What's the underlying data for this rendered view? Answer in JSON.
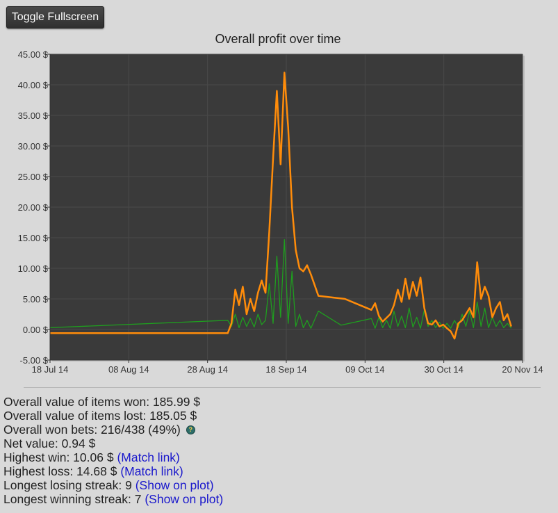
{
  "toolbar": {
    "fullscreen_label": "Toggle Fullscreen"
  },
  "stats": {
    "items_won_label": "Overall value of items won: 185.99 $",
    "items_lost_label": "Overall value of items lost: 185.05 $",
    "won_bets_label": "Overall won bets: 216/438 (49%)",
    "help_icon_glyph": "?",
    "net_value_label": "Net value: 0.94 $",
    "highest_win_label": "Highest win: 10.06 $",
    "highest_win_link": "(Match link)",
    "highest_loss_label": "Highest loss: 14.68 $",
    "highest_loss_link": "(Match link)",
    "losing_streak_label": "Longest losing streak: 9",
    "losing_streak_link": "(Show on plot)",
    "winning_streak_label": "Longest winning streak: 7",
    "winning_streak_link": "(Show on plot)"
  },
  "chart_data": {
    "type": "line",
    "title": "Overall profit over time",
    "xlabel": "",
    "ylabel": "",
    "x_ticks": [
      "18 Jul 14",
      "08 Aug 14",
      "28 Aug 14",
      "18 Sep 14",
      "09 Oct 14",
      "30 Oct 14",
      "20 Nov 14"
    ],
    "y_ticks": [
      "-5.00 $",
      "0.00 $",
      "5.00 $",
      "10.00 $",
      "15.00 $",
      "20.00 $",
      "25.00 $",
      "30.00 $",
      "35.00 $",
      "40.00 $",
      "45.00 $"
    ],
    "xlim": [
      "2014-07-18",
      "2014-11-20"
    ],
    "ylim": [
      -5,
      45
    ],
    "grid": true,
    "background": "#3a3a3a",
    "colors": {
      "plot_bg": "#3a3a3a",
      "grid": "#4a4a4a",
      "profit_line": "#ff8c0a",
      "bet_line": "#1f9e1f"
    },
    "series": [
      {
        "color": "#ff8c0a",
        "points": [
          [
            "2014-07-18",
            -0.6
          ],
          [
            "2014-09-03",
            -0.6
          ],
          [
            "2014-09-04",
            1.0
          ],
          [
            "2014-09-05",
            6.5
          ],
          [
            "2014-09-06",
            4.0
          ],
          [
            "2014-09-07",
            7.0
          ],
          [
            "2014-09-08",
            2.5
          ],
          [
            "2014-09-09",
            5.0
          ],
          [
            "2014-09-10",
            3.0
          ],
          [
            "2014-09-11",
            6.0
          ],
          [
            "2014-09-12",
            8.0
          ],
          [
            "2014-09-13",
            6.0
          ],
          [
            "2014-09-14",
            16.0
          ],
          [
            "2014-09-15",
            28.0
          ],
          [
            "2014-09-16",
            39.0
          ],
          [
            "2014-09-17",
            27.0
          ],
          [
            "2014-09-18",
            42.0
          ],
          [
            "2014-09-19",
            33.0
          ],
          [
            "2014-09-20",
            20.0
          ],
          [
            "2014-09-21",
            13.0
          ],
          [
            "2014-09-22",
            10.0
          ],
          [
            "2014-09-23",
            9.5
          ],
          [
            "2014-09-24",
            10.5
          ],
          [
            "2014-09-25",
            9.0
          ],
          [
            "2014-09-27",
            5.5
          ],
          [
            "2014-10-04",
            5.0
          ],
          [
            "2014-10-11",
            3.2
          ],
          [
            "2014-10-12",
            4.3
          ],
          [
            "2014-10-13",
            2.2
          ],
          [
            "2014-10-14",
            1.3
          ],
          [
            "2014-10-16",
            2.5
          ],
          [
            "2014-10-17",
            4.0
          ],
          [
            "2014-10-18",
            6.5
          ],
          [
            "2014-10-19",
            4.5
          ],
          [
            "2014-10-20",
            8.3
          ],
          [
            "2014-10-21",
            5.0
          ],
          [
            "2014-10-22",
            7.8
          ],
          [
            "2014-10-23",
            5.5
          ],
          [
            "2014-10-24",
            8.5
          ],
          [
            "2014-10-25",
            3.5
          ],
          [
            "2014-10-26",
            1.0
          ],
          [
            "2014-10-27",
            0.8
          ],
          [
            "2014-10-28",
            1.5
          ],
          [
            "2014-10-29",
            0.5
          ],
          [
            "2014-10-30",
            0.8
          ],
          [
            "2014-10-31",
            0.2
          ],
          [
            "2014-11-01",
            -0.3
          ],
          [
            "2014-11-02",
            -1.5
          ],
          [
            "2014-11-03",
            1.0
          ],
          [
            "2014-11-04",
            1.5
          ],
          [
            "2014-11-05",
            2.5
          ],
          [
            "2014-11-06",
            3.5
          ],
          [
            "2014-11-07",
            2.0
          ],
          [
            "2014-11-08",
            11.0
          ],
          [
            "2014-11-09",
            5.0
          ],
          [
            "2014-11-10",
            7.0
          ],
          [
            "2014-11-11",
            5.5
          ],
          [
            "2014-11-12",
            2.0
          ],
          [
            "2014-11-13",
            3.5
          ],
          [
            "2014-11-14",
            4.5
          ],
          [
            "2014-11-15",
            1.5
          ],
          [
            "2014-11-16",
            2.5
          ],
          [
            "2014-11-17",
            0.5
          ]
        ]
      },
      {
        "color": "#1f9e1f",
        "points": [
          [
            "2014-07-18",
            0.3
          ],
          [
            "2014-09-03",
            1.5
          ],
          [
            "2014-09-04",
            0.5
          ],
          [
            "2014-09-05",
            2.5
          ],
          [
            "2014-09-06",
            0.3
          ],
          [
            "2014-09-07",
            2.0
          ],
          [
            "2014-09-08",
            0.5
          ],
          [
            "2014-09-09",
            1.8
          ],
          [
            "2014-09-10",
            0.4
          ],
          [
            "2014-09-11",
            2.5
          ],
          [
            "2014-09-12",
            0.8
          ],
          [
            "2014-09-13",
            1.5
          ],
          [
            "2014-09-14",
            7.5
          ],
          [
            "2014-09-15",
            1.0
          ],
          [
            "2014-09-16",
            12.0
          ],
          [
            "2014-09-17",
            2.0
          ],
          [
            "2014-09-18",
            14.7
          ],
          [
            "2014-09-19",
            1.0
          ],
          [
            "2014-09-20",
            9.5
          ],
          [
            "2014-09-21",
            0.5
          ],
          [
            "2014-09-22",
            2.5
          ],
          [
            "2014-09-23",
            0.3
          ],
          [
            "2014-09-24",
            1.5
          ],
          [
            "2014-09-25",
            0.2
          ],
          [
            "2014-09-27",
            3.0
          ],
          [
            "2014-10-03",
            0.7
          ],
          [
            "2014-10-11",
            1.8
          ],
          [
            "2014-10-12",
            0.2
          ],
          [
            "2014-10-13",
            2.0
          ],
          [
            "2014-10-14",
            0.3
          ],
          [
            "2014-10-15",
            1.5
          ],
          [
            "2014-10-16",
            0.2
          ],
          [
            "2014-10-17",
            3.0
          ],
          [
            "2014-10-18",
            0.5
          ],
          [
            "2014-10-19",
            2.2
          ],
          [
            "2014-10-20",
            0.3
          ],
          [
            "2014-10-21",
            3.5
          ],
          [
            "2014-10-22",
            0.4
          ],
          [
            "2014-10-23",
            2.0
          ],
          [
            "2014-10-24",
            0.2
          ],
          [
            "2014-10-25",
            3.2
          ],
          [
            "2014-10-26",
            0.5
          ],
          [
            "2014-10-27",
            1.5
          ],
          [
            "2014-10-28",
            0.3
          ],
          [
            "2014-10-29",
            1.2
          ],
          [
            "2014-10-30",
            0.2
          ],
          [
            "2014-10-31",
            1.0
          ],
          [
            "2014-11-01",
            0.2
          ],
          [
            "2014-11-02",
            1.5
          ],
          [
            "2014-11-03",
            0.3
          ],
          [
            "2014-11-04",
            2.5
          ],
          [
            "2014-11-05",
            0.5
          ],
          [
            "2014-11-06",
            3.0
          ],
          [
            "2014-11-07",
            0.3
          ],
          [
            "2014-11-08",
            4.5
          ],
          [
            "2014-11-09",
            0.5
          ],
          [
            "2014-11-10",
            3.5
          ],
          [
            "2014-11-11",
            0.3
          ],
          [
            "2014-11-12",
            2.0
          ],
          [
            "2014-11-13",
            0.5
          ],
          [
            "2014-11-14",
            1.5
          ],
          [
            "2014-11-15",
            0.3
          ],
          [
            "2014-11-16",
            1.0
          ],
          [
            "2014-11-17",
            0.2
          ]
        ]
      }
    ]
  }
}
